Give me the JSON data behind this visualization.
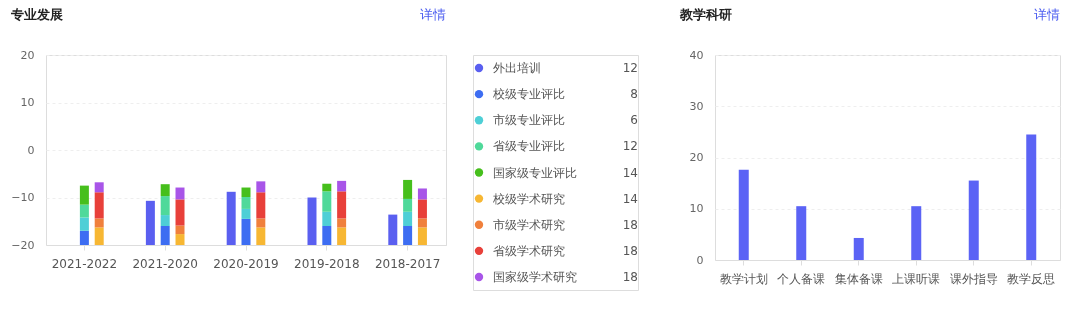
{
  "chart_data": [
    {
      "type": "bar",
      "title": "专业发展",
      "subtitle": "详情",
      "categories": [
        "2021-2022",
        "2021-2020",
        "2020-2019",
        "2019-2018",
        "2018-2017"
      ],
      "ylim": [
        -20,
        20
      ],
      "yticks": [
        -20,
        -10,
        0,
        10,
        20
      ],
      "grid": "y",
      "legend": "right",
      "series": [
        {
          "name": "外出培训",
          "color": "#5a5ff0",
          "base": [
            null,
            -20,
            -20,
            -20,
            -20
          ],
          "values": [
            null,
            9.3,
            11.2,
            10.0,
            6.4
          ]
        },
        {
          "name": "校级专业评比",
          "color": "#3d6df2",
          "base": [
            -20,
            -20,
            -20,
            -20,
            -20
          ],
          "values": [
            3.0,
            4.0,
            5.5,
            4.0,
            4.0
          ]
        },
        {
          "name": "市级专业评比",
          "color": "#4ecfd6",
          "base": [
            -17.0,
            -16.0,
            -14.5,
            -16.0,
            -16.0
          ],
          "values": [
            2.8,
            2.3,
            2.1,
            3.0,
            3.0
          ]
        },
        {
          "name": "省级专业评比",
          "color": "#4fd99a",
          "base": [
            -14.2,
            -13.7,
            -12.4,
            -13.0,
            -13.0
          ],
          "values": [
            2.7,
            4.0,
            2.5,
            4.3,
            2.7
          ]
        },
        {
          "name": "国家级专业评比",
          "color": "#46bf1c",
          "base": [
            -11.5,
            -9.7,
            -9.9,
            -8.7,
            -10.3
          ],
          "values": [
            4.0,
            2.5,
            2.0,
            1.6,
            4.0
          ]
        },
        {
          "name": "校级学术研究",
          "color": "#f7b733",
          "base": [
            -20,
            -20,
            -20,
            -20,
            -20
          ],
          "values": [
            3.7,
            2.3,
            3.7,
            3.7,
            3.7
          ]
        },
        {
          "name": "市级学术研究",
          "color": "#f0803c",
          "base": [
            -16.3,
            -17.7,
            -16.3,
            -16.3,
            -16.3
          ],
          "values": [
            1.9,
            1.8,
            1.9,
            1.9,
            1.9
          ]
        },
        {
          "name": "省级学术研究",
          "color": "#e8403a",
          "base": [
            -14.4,
            -15.9,
            -14.4,
            -14.4,
            -14.4
          ],
          "values": [
            5.5,
            5.5,
            5.5,
            5.7,
            4.0
          ]
        },
        {
          "name": "国家级学术研究",
          "color": "#a855e8",
          "base": [
            -8.9,
            -10.4,
            -8.9,
            -8.7,
            -10.4
          ],
          "values": [
            2.1,
            2.5,
            2.3,
            2.2,
            2.3
          ]
        }
      ],
      "annotations": [
        "12",
        "8",
        "6",
        "12",
        "14",
        "14",
        "18",
        "18",
        "18"
      ]
    },
    {
      "type": "bar",
      "title": "教学科研",
      "subtitle": "详情",
      "categories": [
        "教学计划",
        "个人备课",
        "集体备课",
        "上课听课",
        "课外指导",
        "教学反思"
      ],
      "values": [
        17.6,
        10.5,
        4.3,
        10.5,
        15.5,
        24.5
      ],
      "color": "#5b63f5",
      "ylim": [
        0,
        40
      ],
      "yticks": [
        0,
        10,
        20,
        30,
        40
      ],
      "grid": "y"
    }
  ]
}
